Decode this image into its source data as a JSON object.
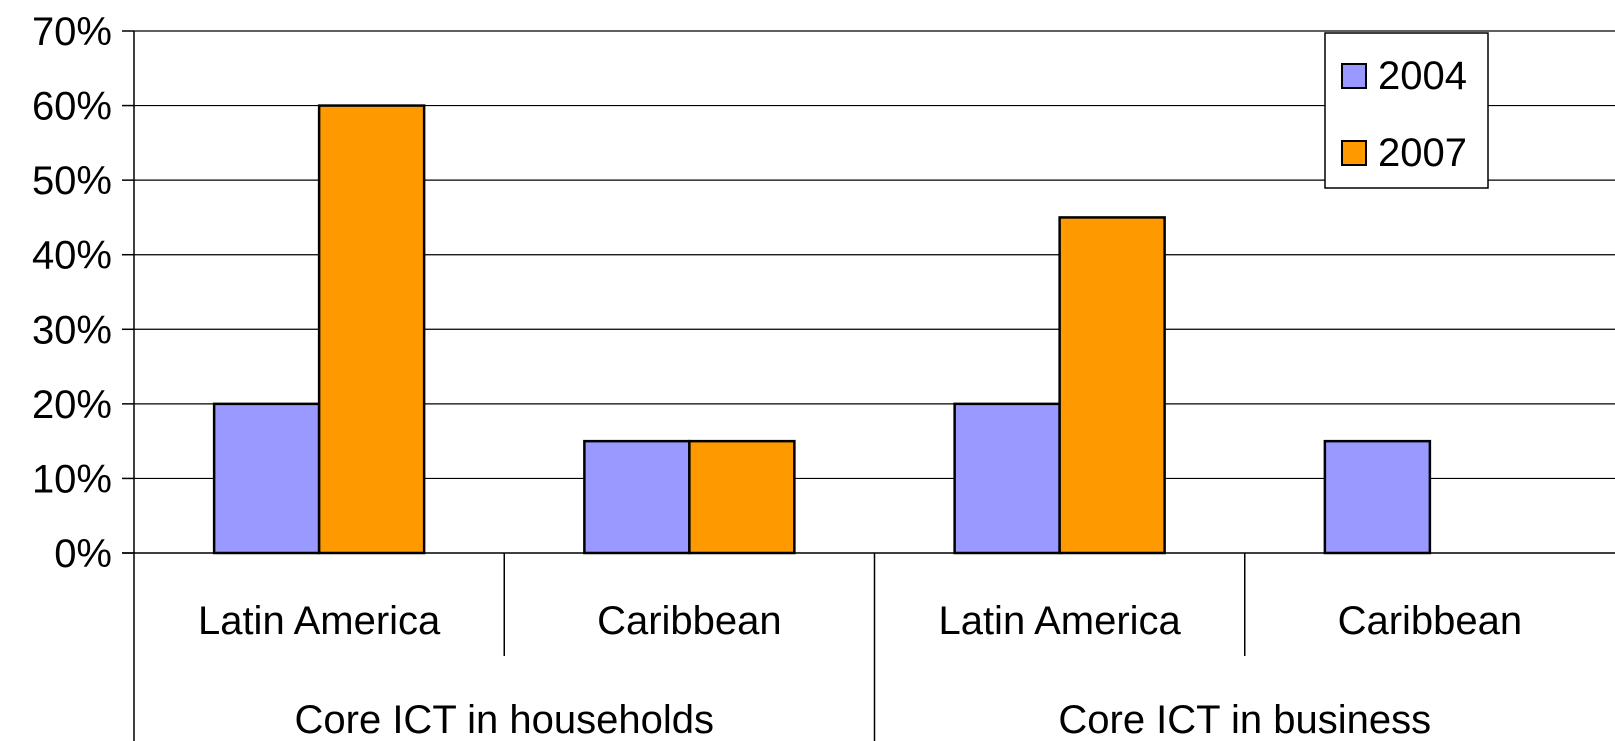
{
  "chart_data": {
    "type": "bar",
    "title": "",
    "xlabel": "",
    "ylabel": "",
    "ylim": [
      0,
      70
    ],
    "y_ticks": [
      "0%",
      "10%",
      "20%",
      "30%",
      "40%",
      "50%",
      "60%",
      "70%"
    ],
    "grid": true,
    "legend_position": "top-right",
    "groups": [
      {
        "label": "Core ICT in households",
        "categories": [
          "Latin America",
          "Caribbean"
        ]
      },
      {
        "label": "Core ICT in business",
        "categories": [
          "Latin America",
          "Caribbean"
        ]
      }
    ],
    "categories": [
      "Latin America",
      "Caribbean",
      "Latin America",
      "Caribbean"
    ],
    "series": [
      {
        "name": "2004",
        "color": "#9999ff",
        "values": [
          20,
          15,
          20,
          15
        ]
      },
      {
        "name": "2007",
        "color": "#ff9900",
        "values": [
          60,
          15,
          45,
          null
        ]
      }
    ]
  }
}
